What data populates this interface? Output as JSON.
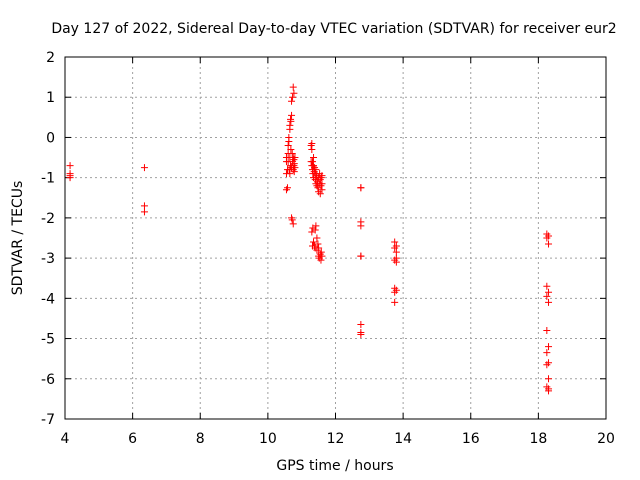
{
  "chart_data": {
    "type": "scatter",
    "title": "Day 127 of 2022, Sidereal Day-to-day VTEC variation (SDTVAR) for receiver eur2",
    "xlabel": "GPS time / hours",
    "ylabel": "SDTVAR / TECUs",
    "xlim": [
      4,
      20
    ],
    "ylim": [
      -7,
      2
    ],
    "xticks": [
      4,
      6,
      8,
      10,
      12,
      14,
      16,
      18,
      20
    ],
    "yticks": [
      -7,
      -6,
      -5,
      -4,
      -3,
      -2,
      -1,
      0,
      1,
      2
    ],
    "grid": true,
    "marker": "plus",
    "color": "#ff0000",
    "series": [
      {
        "name": "SDTVAR",
        "x": [
          4.15,
          4.15,
          4.15,
          4.15,
          6.35,
          6.35,
          6.35,
          10.55,
          10.55,
          10.55,
          10.55,
          10.58,
          10.58,
          10.6,
          10.6,
          10.6,
          10.62,
          10.62,
          10.63,
          10.65,
          10.65,
          10.65,
          10.65,
          10.67,
          10.67,
          10.68,
          10.68,
          10.7,
          10.7,
          10.7,
          10.7,
          10.72,
          10.72,
          10.73,
          10.73,
          10.75,
          10.75,
          10.75,
          10.75,
          10.77,
          10.77,
          10.77,
          10.78,
          10.78,
          10.8,
          10.8,
          11.28,
          11.28,
          11.3,
          11.3,
          11.3,
          11.32,
          11.32,
          11.33,
          11.35,
          11.35,
          11.35,
          11.37,
          11.38,
          11.4,
          11.4,
          11.42,
          11.42,
          11.43,
          11.45,
          11.45,
          11.47,
          11.48,
          11.5,
          11.5,
          11.52,
          11.53,
          11.55,
          11.55,
          11.57,
          11.58,
          11.6,
          11.6,
          11.6,
          11.3,
          11.33,
          11.35,
          11.38,
          11.4,
          11.42,
          11.45,
          11.45,
          11.48,
          11.5,
          11.5,
          11.52,
          11.55,
          11.57,
          11.58,
          11.6,
          11.32,
          11.4,
          12.75,
          12.75,
          12.75,
          12.75,
          12.75,
          12.75,
          12.75,
          12.75,
          12.75,
          13.75,
          13.75,
          13.8,
          13.8,
          13.8,
          13.75,
          13.8,
          13.75,
          13.8,
          13.75,
          13.75,
          18.25,
          18.25,
          18.3,
          18.3,
          18.25,
          18.3,
          18.25,
          18.3,
          18.25,
          18.3,
          18.25,
          18.3,
          18.25,
          18.3,
          18.25,
          18.3,
          18.3
        ],
        "y": [
          -0.7,
          -0.9,
          -1.0,
          -0.95,
          -0.75,
          -1.7,
          -1.85,
          -1.3,
          -0.9,
          -0.6,
          -0.5,
          -1.25,
          -0.8,
          -0.4,
          -0.2,
          -0.6,
          0.0,
          -0.1,
          -0.8,
          0.3,
          -0.5,
          -0.9,
          0.2,
          0.45,
          -0.7,
          0.4,
          -0.3,
          -2.0,
          0.55,
          -0.75,
          0.9,
          -2.05,
          -0.4,
          1.0,
          -0.6,
          1.25,
          -2.15,
          -0.8,
          -0.5,
          1.1,
          -0.7,
          -0.55,
          -0.65,
          -0.85,
          -0.5,
          -0.75,
          -0.2,
          -0.6,
          -0.3,
          -0.7,
          -0.15,
          -0.8,
          -0.6,
          -0.9,
          -0.7,
          -0.5,
          -1.0,
          -0.85,
          -0.75,
          -1.05,
          -0.9,
          -1.15,
          -0.8,
          -1.0,
          -1.2,
          -0.95,
          -1.1,
          -1.25,
          -1.0,
          -1.35,
          -1.15,
          -0.9,
          -1.4,
          -1.05,
          -1.2,
          -1.0,
          -0.95,
          -1.15,
          -1.3,
          -2.35,
          -2.25,
          -2.6,
          -2.7,
          -2.75,
          -2.2,
          -2.5,
          -2.8,
          -2.65,
          -2.75,
          -2.95,
          -3.0,
          -2.9,
          -3.05,
          -2.85,
          -2.95,
          -2.7,
          -2.3,
          -1.25,
          -1.25,
          -2.1,
          -2.2,
          -2.95,
          -2.95,
          -4.65,
          -4.85,
          -4.9,
          -2.6,
          -2.75,
          -2.7,
          -2.85,
          -3.0,
          -3.05,
          -3.1,
          -3.75,
          -3.8,
          -3.85,
          -4.1,
          -2.4,
          -2.5,
          -2.45,
          -2.65,
          -3.7,
          -3.85,
          -3.95,
          -4.1,
          -4.8,
          -5.2,
          -5.35,
          -5.6,
          -5.65,
          -6.0,
          -6.2,
          -6.3,
          -6.25
        ]
      }
    ]
  }
}
